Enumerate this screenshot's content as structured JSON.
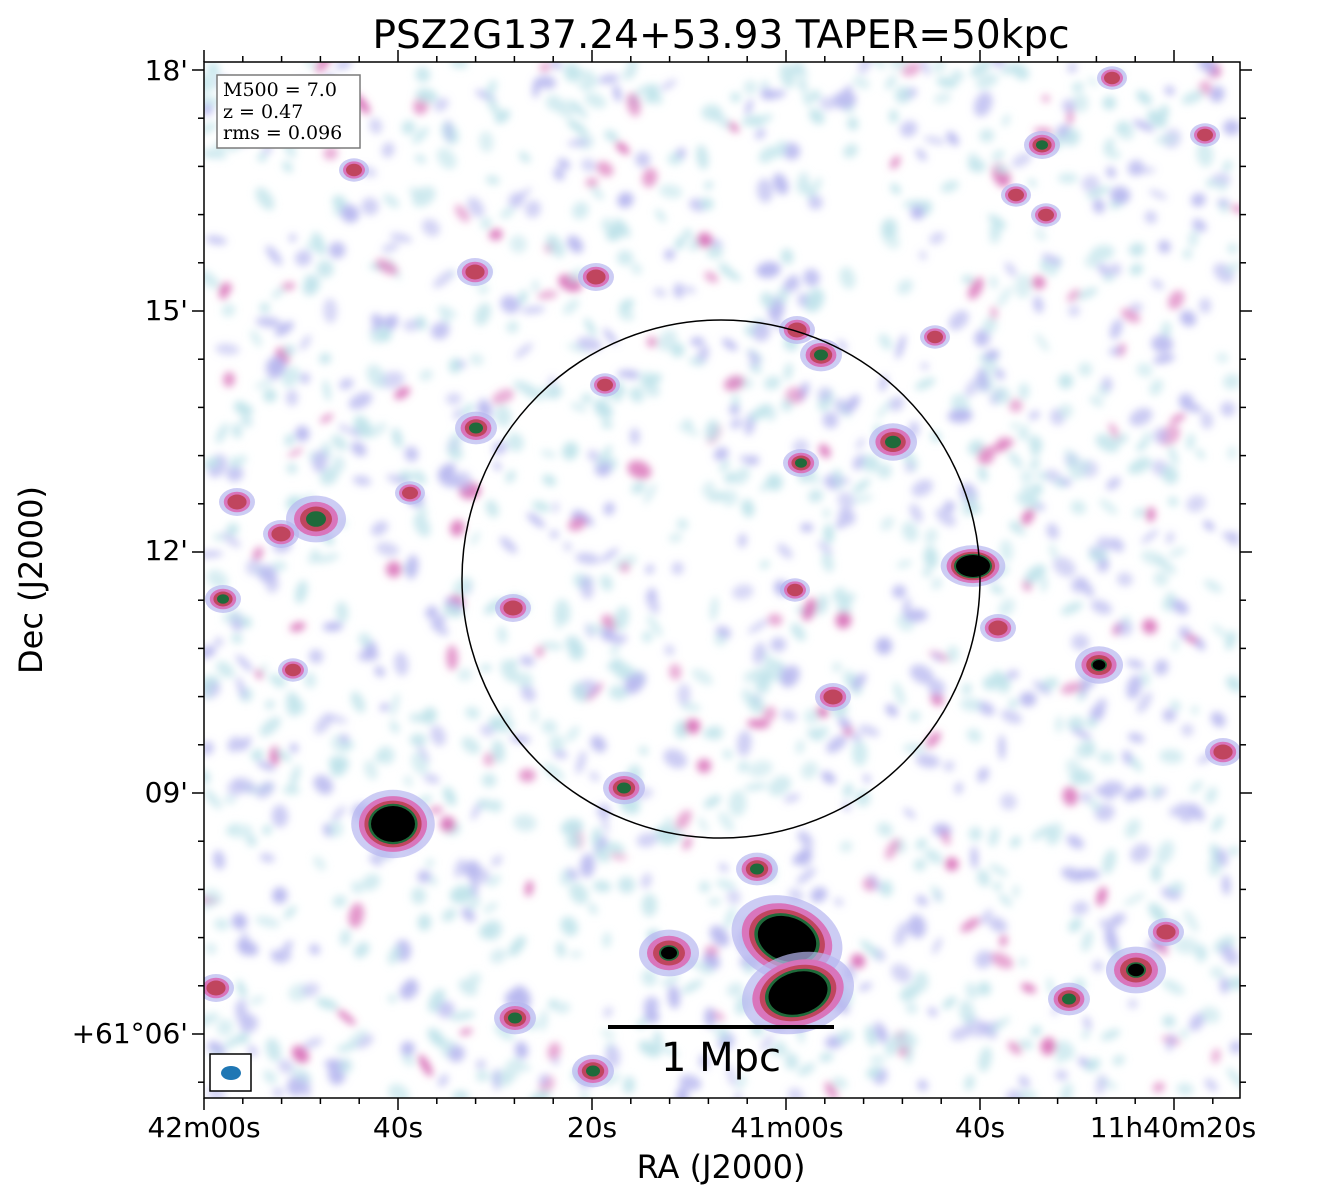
{
  "title": "PSZ2G137.24+53.93 TAPER=50kpc",
  "xlabel": "RA (J2000)",
  "ylabel": "Dec (J2000)",
  "x_ticks": [
    "42m00s",
    "40s",
    "20s",
    "41m00s",
    "40s",
    "11h40m20s"
  ],
  "y_ticks": [
    "18'",
    "15'",
    "12'",
    "09'",
    "+61°06'"
  ],
  "info_box": {
    "m500": "M500 = 7.0",
    "z": "z = 0.47",
    "rms": "rms = 0.096"
  },
  "scalebar_label": "1 Mpc",
  "colors": {
    "beam": "#1f77b4",
    "noise_light": "#bfe3ea",
    "noise_mid": "#b7b7ef",
    "source_pink": "#d970b8",
    "source_red": "#c0455e",
    "source_green": "#1f6a3a",
    "source_core": "#000000"
  }
}
